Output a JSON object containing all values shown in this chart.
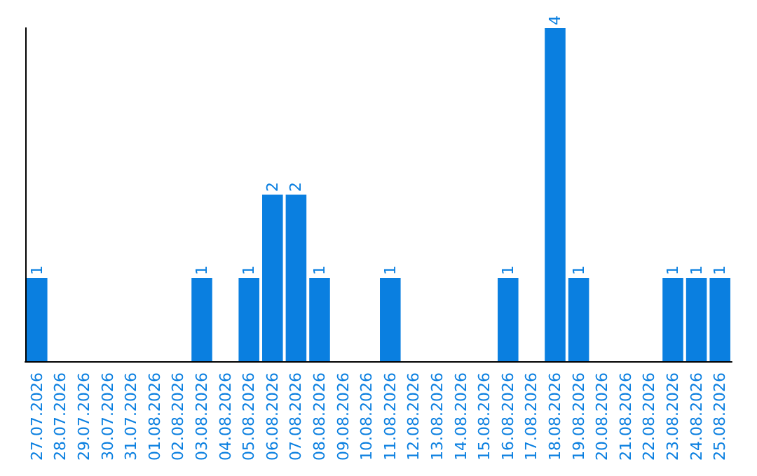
{
  "chart_data": {
    "type": "bar",
    "categories": [
      "27.07.2026",
      "28.07.2026",
      "29.07.2026",
      "30.07.2026",
      "31.07.2026",
      "01.08.2026",
      "02.08.2026",
      "03.08.2026",
      "04.08.2026",
      "05.08.2026",
      "06.08.2026",
      "07.08.2026",
      "08.08.2026",
      "09.08.2026",
      "10.08.2026",
      "11.08.2026",
      "12.08.2026",
      "13.08.2026",
      "14.08.2026",
      "15.08.2026",
      "16.08.2026",
      "17.08.2026",
      "18.08.2026",
      "19.08.2026",
      "20.08.2026",
      "21.08.2026",
      "22.08.2026",
      "23.08.2026",
      "24.08.2026",
      "25.08.2026"
    ],
    "values": [
      1,
      0,
      0,
      0,
      0,
      0,
      0,
      1,
      0,
      1,
      2,
      2,
      1,
      0,
      0,
      1,
      0,
      0,
      0,
      0,
      1,
      0,
      4,
      1,
      0,
      0,
      0,
      1,
      1,
      1
    ],
    "value_labels": [
      "1",
      null,
      null,
      null,
      null,
      null,
      null,
      "1",
      null,
      "1",
      "2",
      "2",
      "1",
      null,
      null,
      "1",
      null,
      null,
      null,
      null,
      "1",
      null,
      "4",
      "1",
      null,
      null,
      null,
      "1",
      "1",
      "1"
    ],
    "color": "#0a7fe0",
    "grid": false,
    "tick_labels": "x"
  }
}
